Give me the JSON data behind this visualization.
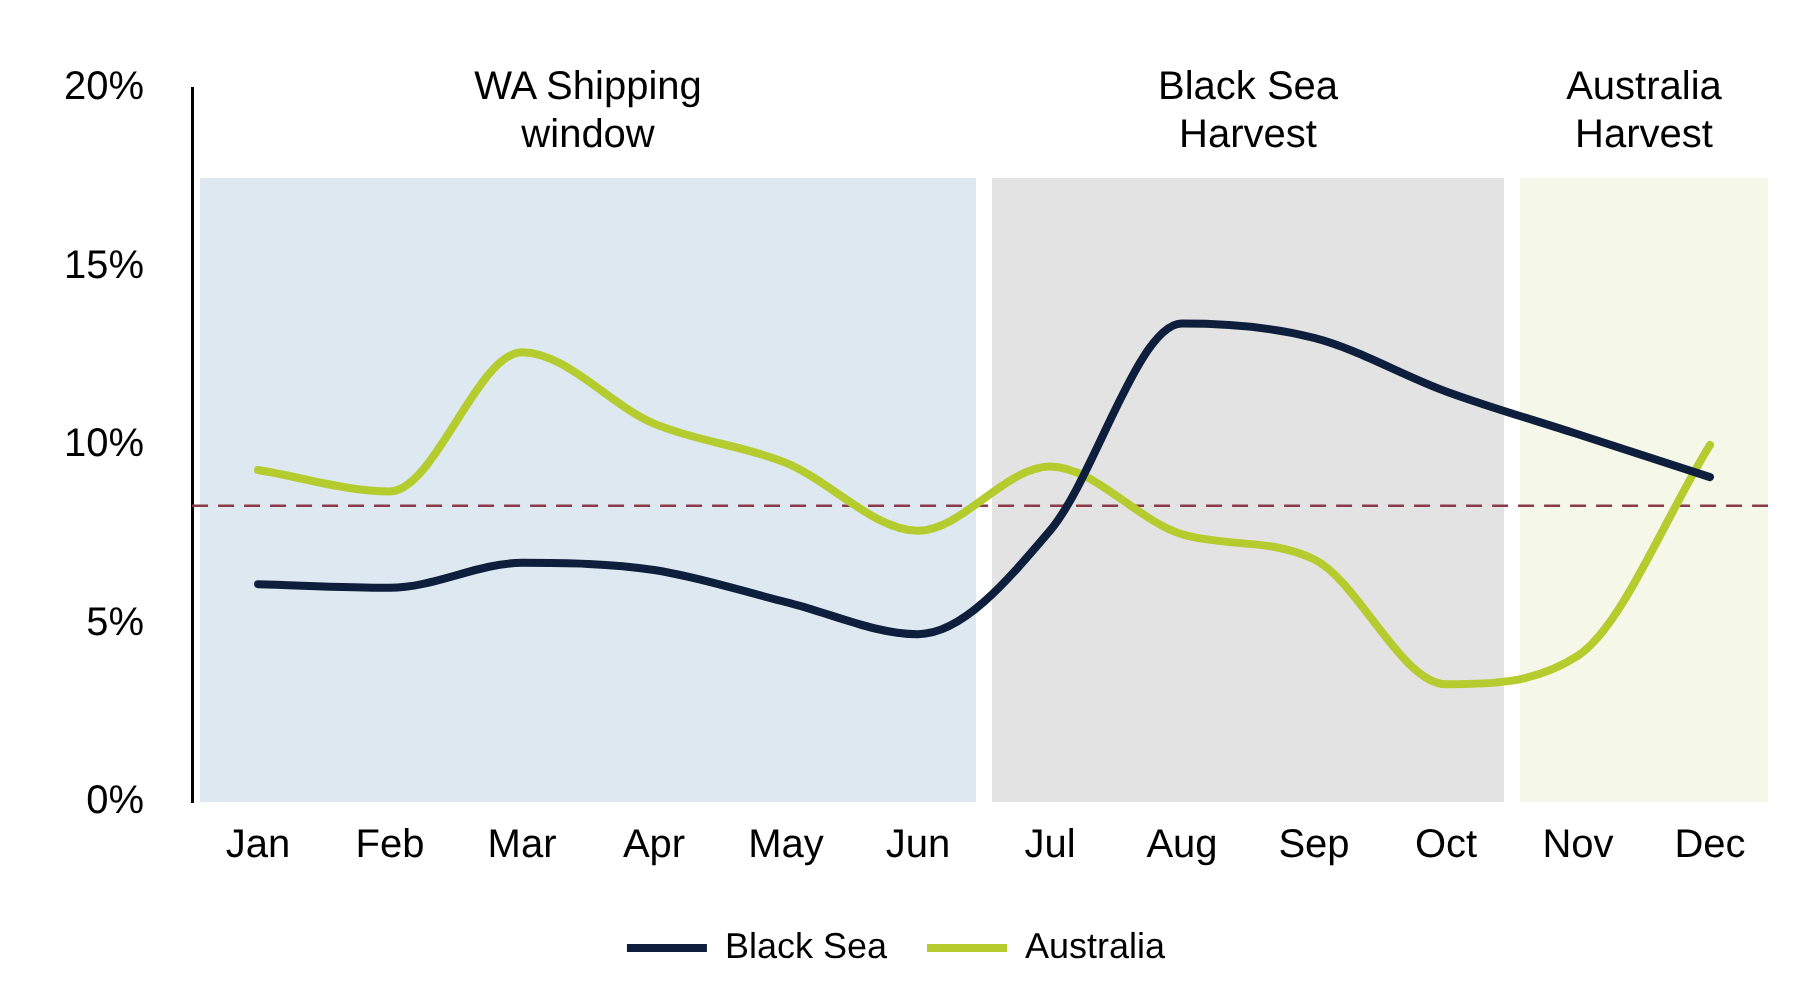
{
  "chart_data": {
    "type": "line",
    "categories": [
      "Jan",
      "Feb",
      "Mar",
      "Apr",
      "May",
      "Jun",
      "Jul",
      "Aug",
      "Sep",
      "Oct",
      "Nov",
      "Dec"
    ],
    "series": [
      {
        "name": "Black Sea",
        "color": "#0d1f3c",
        "values": [
          6.1,
          6.0,
          6.7,
          6.5,
          5.6,
          4.7,
          7.6,
          13.4,
          13.0,
          11.5,
          10.3,
          9.1
        ]
      },
      {
        "name": "Australia",
        "color": "#b5cc2e",
        "values": [
          9.3,
          8.7,
          12.6,
          10.6,
          9.5,
          7.6,
          9.4,
          7.5,
          6.8,
          3.3,
          4.1,
          10.0
        ]
      }
    ],
    "ylim": [
      0,
      20
    ],
    "yticks": [
      {
        "value": 0,
        "label": "0%"
      },
      {
        "value": 5,
        "label": "5%"
      },
      {
        "value": 10,
        "label": "10%"
      },
      {
        "value": 15,
        "label": "15%"
      },
      {
        "value": 20,
        "label": "20%"
      }
    ],
    "grid": false,
    "legend": "bottom",
    "marker": "none",
    "line_style": "solid",
    "ref_lines": [
      {
        "axis": "y",
        "value": 8.3,
        "color": "#8b3a4a",
        "line_style": "dashed"
      }
    ],
    "bands": [
      {
        "axis": "x",
        "from": "Jan",
        "to": "Jun",
        "label": "WA Shipping window",
        "color": "#dde8f0"
      },
      {
        "axis": "x",
        "from": "Jul",
        "to": "Oct",
        "label": "Black Sea Harvest",
        "color": "#e3e3e3"
      },
      {
        "axis": "x",
        "from": "Nov",
        "to": "Dec",
        "label": "Australia Harvest",
        "color": "#f5f8e8"
      }
    ]
  }
}
